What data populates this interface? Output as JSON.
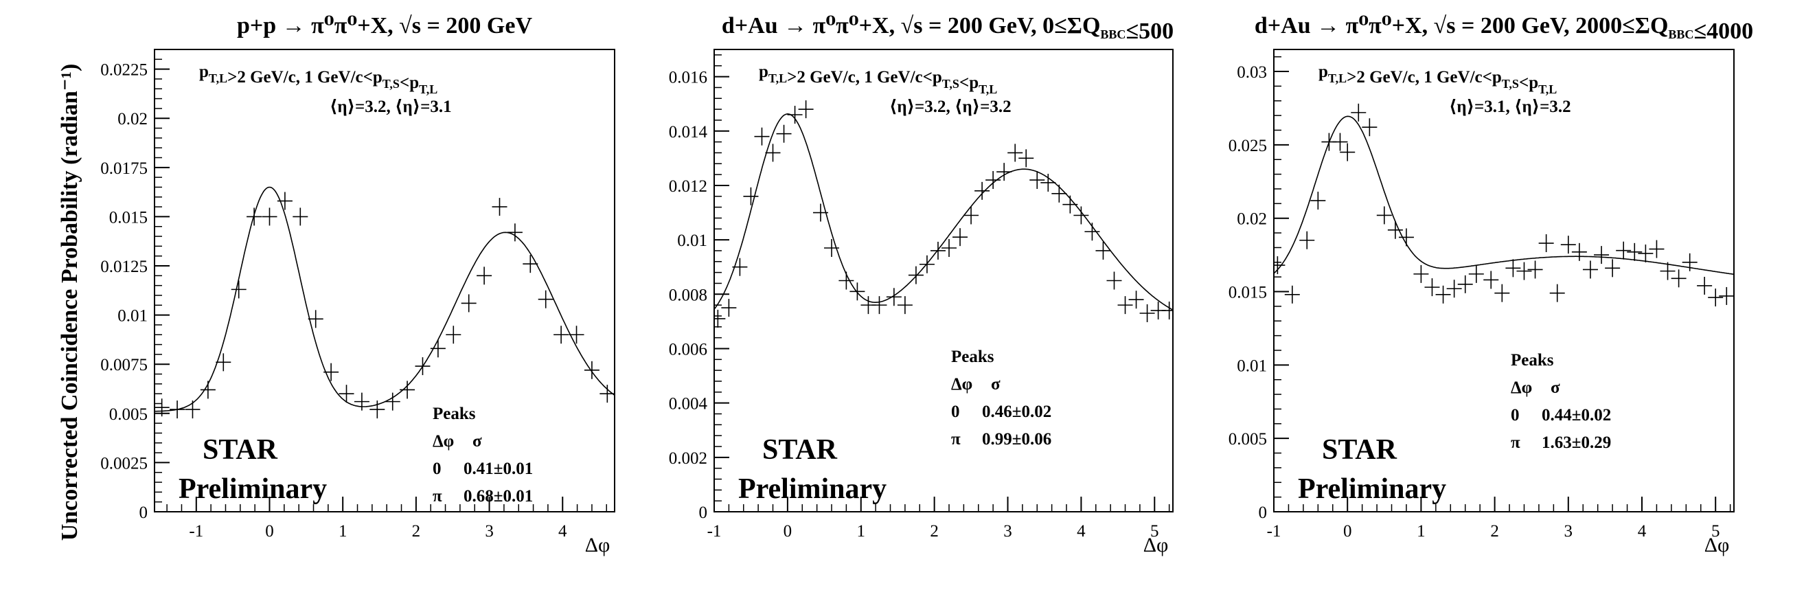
{
  "ylabel": "Uncorrected Coincidence Probability (radian⁻¹)",
  "chart_data": [
    {
      "type": "scatter",
      "title": "p+p → π⁰π⁰+X, √s = 200 GeV",
      "xlabel": "Δφ",
      "xlim": [
        -1.57,
        4.71
      ],
      "ylim": [
        0,
        0.0235
      ],
      "xticks": [
        -1,
        0,
        1,
        2,
        3,
        4
      ],
      "xtick_labels": [
        "-1",
        "0",
        "1",
        "2",
        "3",
        "4"
      ],
      "yticks": [
        0,
        0.0025,
        0.005,
        0.0075,
        0.01,
        0.0125,
        0.015,
        0.0175,
        0.02,
        0.0225
      ],
      "ytick_labels": [
        "0",
        "0.0025",
        "0.005",
        "0.0075",
        "0.01",
        "0.0125",
        "0.015",
        "0.0175",
        "0.02",
        "0.0225"
      ],
      "cut_line": "p_T,L>2 GeV/c,  1 GeV/c<p_T,S<p_T,L",
      "eta_line": "⟨η⟩=3.2, ⟨η⟩=3.1",
      "x": [
        -1.47,
        -1.26,
        -1.05,
        -0.84,
        -0.63,
        -0.42,
        -0.21,
        0.0,
        0.21,
        0.42,
        0.63,
        0.84,
        1.05,
        1.26,
        1.47,
        1.68,
        1.88,
        2.09,
        2.3,
        2.51,
        2.72,
        2.93,
        3.14,
        3.35,
        3.56,
        3.77,
        3.98,
        4.19,
        4.4,
        4.61
      ],
      "y": [
        0.0053,
        0.0052,
        0.0052,
        0.0062,
        0.0076,
        0.0113,
        0.015,
        0.015,
        0.0158,
        0.015,
        0.0098,
        0.0071,
        0.006,
        0.0056,
        0.0052,
        0.0056,
        0.0062,
        0.0074,
        0.0083,
        0.009,
        0.0106,
        0.012,
        0.0155,
        0.0142,
        0.0126,
        0.0108,
        0.009,
        0.009,
        0.0072,
        0.006
      ],
      "fit": {
        "base": 0.0051,
        "a1": 0.0114,
        "mu1": 0.0,
        "s1": 0.41,
        "a2": 0.0091,
        "mu2": 3.22,
        "s2": 0.68
      },
      "peaks": {
        "header": "Peaks",
        "columns": [
          "Δφ",
          "σ"
        ],
        "rows": [
          [
            "0",
            "0.41±0.01"
          ],
          [
            "π",
            "0.68±0.01"
          ]
        ]
      },
      "watermark": [
        "STAR",
        "Preliminary"
      ]
    },
    {
      "type": "scatter",
      "title": "d+Au → π⁰π⁰+X, √s = 200 GeV, 0≤ΣQ_BBC≤500",
      "xlabel": "Δφ",
      "xlim": [
        -1.0,
        5.25
      ],
      "ylim": [
        0,
        0.017
      ],
      "xticks": [
        -1,
        0,
        1,
        2,
        3,
        4,
        5
      ],
      "xtick_labels": [
        "-1",
        "0",
        "1",
        "2",
        "3",
        "4",
        "5"
      ],
      "yticks": [
        0,
        0.002,
        0.004,
        0.006,
        0.008,
        0.01,
        0.012,
        0.014,
        0.016
      ],
      "ytick_labels": [
        "0",
        "0.002",
        "0.004",
        "0.006",
        "0.008",
        "0.01",
        "0.012",
        "0.014",
        "0.016"
      ],
      "cut_line": "p_T,L>2 GeV/c,  1 GeV/c<p_T,S<p_T,L",
      "eta_line": "⟨η⟩=3.2, ⟨η⟩=3.2",
      "x": [
        -0.95,
        -0.8,
        -0.65,
        -0.5,
        -0.35,
        -0.2,
        -0.05,
        0.1,
        0.25,
        0.45,
        0.6,
        0.8,
        0.95,
        1.1,
        1.25,
        1.45,
        1.6,
        1.75,
        1.9,
        2.05,
        2.2,
        2.35,
        2.5,
        2.65,
        2.8,
        2.95,
        3.1,
        3.25,
        3.4,
        3.55,
        3.7,
        3.85,
        4.0,
        4.15,
        4.3,
        4.45,
        4.6,
        4.75,
        4.9,
        5.05,
        5.2
      ],
      "y": [
        0.0071,
        0.0075,
        0.009,
        0.0116,
        0.0138,
        0.0132,
        0.0139,
        0.0146,
        0.0148,
        0.011,
        0.0097,
        0.0085,
        0.0081,
        0.0076,
        0.0076,
        0.0079,
        0.0076,
        0.0087,
        0.0091,
        0.0096,
        0.0097,
        0.0101,
        0.0109,
        0.0118,
        0.0122,
        0.0125,
        0.0132,
        0.013,
        0.0122,
        0.0121,
        0.0117,
        0.0113,
        0.0109,
        0.0103,
        0.0096,
        0.0085,
        0.0076,
        0.0078,
        0.0073,
        0.0074,
        0.0074
      ],
      "fit": {
        "base": 0.0067,
        "a1": 0.0079,
        "mu1": 0.0,
        "s1": 0.46,
        "a2": 0.0059,
        "mu2": 3.22,
        "s2": 0.99
      },
      "peaks": {
        "header": "Peaks",
        "columns": [
          "Δφ",
          "σ"
        ],
        "rows": [
          [
            "0",
            "0.46±0.02"
          ],
          [
            "π",
            "0.99±0.06"
          ]
        ]
      },
      "watermark": [
        "STAR",
        "Preliminary"
      ]
    },
    {
      "type": "scatter",
      "title": "d+Au → π⁰π⁰+X, √s = 200 GeV, 2000≤ΣQ_BBC≤4000",
      "xlabel": "Δφ",
      "xlim": [
        -1.0,
        5.25
      ],
      "ylim": [
        0,
        0.0315
      ],
      "xticks": [
        -1,
        0,
        1,
        2,
        3,
        4,
        5
      ],
      "xtick_labels": [
        "-1",
        "0",
        "1",
        "2",
        "3",
        "4",
        "5"
      ],
      "yticks": [
        0,
        0.005,
        0.01,
        0.015,
        0.02,
        0.025,
        0.03
      ],
      "ytick_labels": [
        "0",
        "0.005",
        "0.01",
        "0.015",
        "0.02",
        "0.025",
        "0.03"
      ],
      "cut_line": "p_T,L>2 GeV/c,  1 GeV/c<p_T,S<p_T,L",
      "eta_line": "⟨η⟩=3.1, ⟨η⟩=3.2",
      "x": [
        -0.95,
        -0.75,
        -0.55,
        -0.4,
        -0.25,
        -0.1,
        0.0,
        0.15,
        0.3,
        0.5,
        0.65,
        0.8,
        1.0,
        1.15,
        1.3,
        1.45,
        1.6,
        1.75,
        1.95,
        2.1,
        2.25,
        2.4,
        2.55,
        2.7,
        2.85,
        3.0,
        3.15,
        3.3,
        3.45,
        3.6,
        3.75,
        3.9,
        4.05,
        4.2,
        4.35,
        4.5,
        4.65,
        4.85,
        5.0,
        5.15
      ],
      "y": [
        0.0168,
        0.0148,
        0.0185,
        0.0212,
        0.0252,
        0.0252,
        0.0245,
        0.0272,
        0.0262,
        0.0202,
        0.0192,
        0.0187,
        0.0162,
        0.0153,
        0.0148,
        0.0152,
        0.0155,
        0.0162,
        0.0158,
        0.0149,
        0.0166,
        0.0164,
        0.0165,
        0.0183,
        0.0149,
        0.0182,
        0.0177,
        0.0165,
        0.0175,
        0.0166,
        0.0178,
        0.0177,
        0.0176,
        0.0179,
        0.0164,
        0.0159,
        0.017,
        0.0154,
        0.0146,
        0.0147
      ],
      "fit": {
        "base": 0.0153,
        "a1": 0.0113,
        "mu1": 0.0,
        "s1": 0.44,
        "a2": 0.0021,
        "mu2": 3.1,
        "s2": 1.63
      },
      "peaks": {
        "header": "Peaks",
        "columns": [
          "Δφ",
          "σ"
        ],
        "rows": [
          [
            "0",
            "0.44±0.02"
          ],
          [
            "π",
            "1.63±0.29"
          ]
        ]
      },
      "watermark": [
        "STAR",
        "Preliminary"
      ]
    }
  ]
}
